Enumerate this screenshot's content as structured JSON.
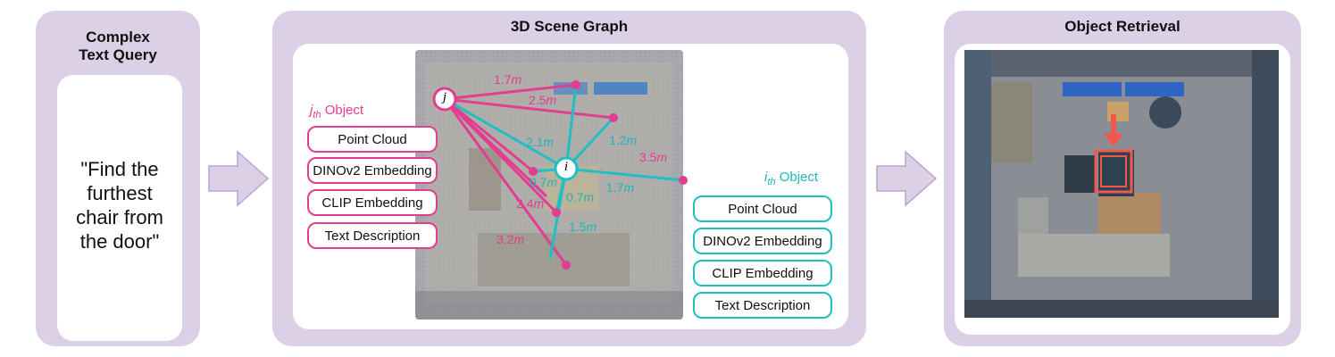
{
  "query_panel": {
    "title": "Complex\nText Query",
    "query": "\"Find the\nfurthest\nchair from\nthe door\""
  },
  "graph_panel": {
    "title": "3D Scene Graph",
    "node_j": "j",
    "node_i": "i",
    "j_object": {
      "label_main": "j",
      "label_sub": "th",
      "label_suffix": " Object",
      "features": [
        "Point Cloud",
        "DINOv2 Embedding",
        "CLIP Embedding",
        "Text Description"
      ]
    },
    "i_object": {
      "label_main": "i",
      "label_sub": "th",
      "label_suffix": " Object",
      "features": [
        "Point Cloud",
        "DINOv2 Embedding",
        "CLIP Embedding",
        "Text Description"
      ]
    },
    "distances_j": [
      {
        "value": "1.7",
        "unit": "m"
      },
      {
        "value": "2.5",
        "unit": "m"
      },
      {
        "value": "2.4",
        "unit": "m"
      },
      {
        "value": "3.2",
        "unit": "m"
      }
    ],
    "distances_i": [
      {
        "value": "1.2",
        "unit": "m"
      },
      {
        "value": "2.1",
        "unit": "m"
      },
      {
        "value": "3.5",
        "unit": "m"
      },
      {
        "value": "1.7",
        "unit": "m"
      },
      {
        "value": "0.7",
        "unit": "m"
      },
      {
        "value": "0.7",
        "unit": "m"
      },
      {
        "value": "1.5",
        "unit": "m"
      }
    ]
  },
  "retrieval_panel": {
    "title": "Object Retrieval"
  },
  "colors": {
    "panel": "#dcd0e6",
    "pink": "#e23d8e",
    "cyan": "#1fbfc4",
    "highlight": "#f2574d"
  }
}
